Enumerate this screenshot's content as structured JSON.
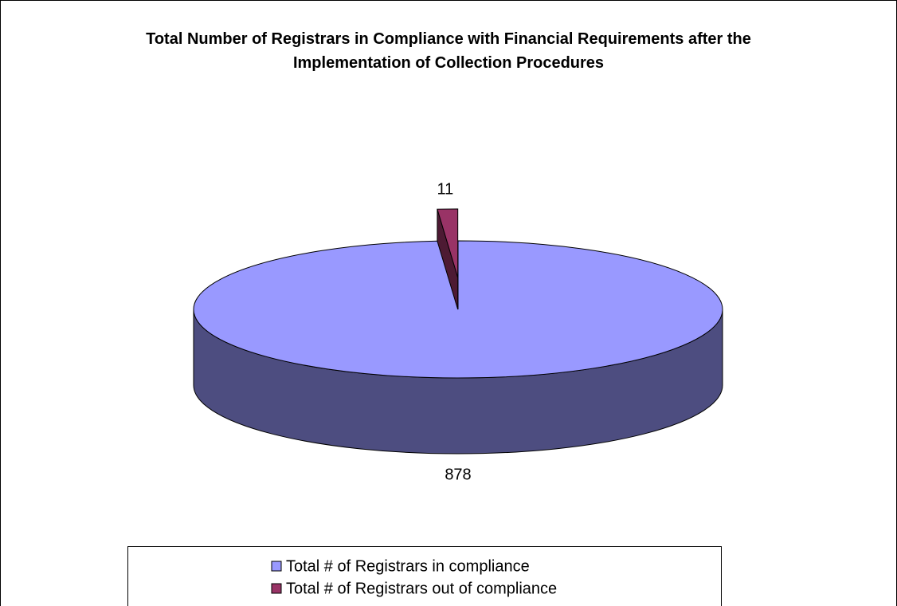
{
  "chart_data": {
    "type": "pie3d",
    "title": "Total Number of Registrars in Compliance with Financial Requirements after the Implementation of Collection Procedures",
    "categories": [
      "Total # of Registrars in compliance",
      "Total # of Registrars out of compliance"
    ],
    "values": [
      878,
      11
    ],
    "colors": [
      "#9999ff",
      "#993366"
    ],
    "legend": "bottom"
  }
}
